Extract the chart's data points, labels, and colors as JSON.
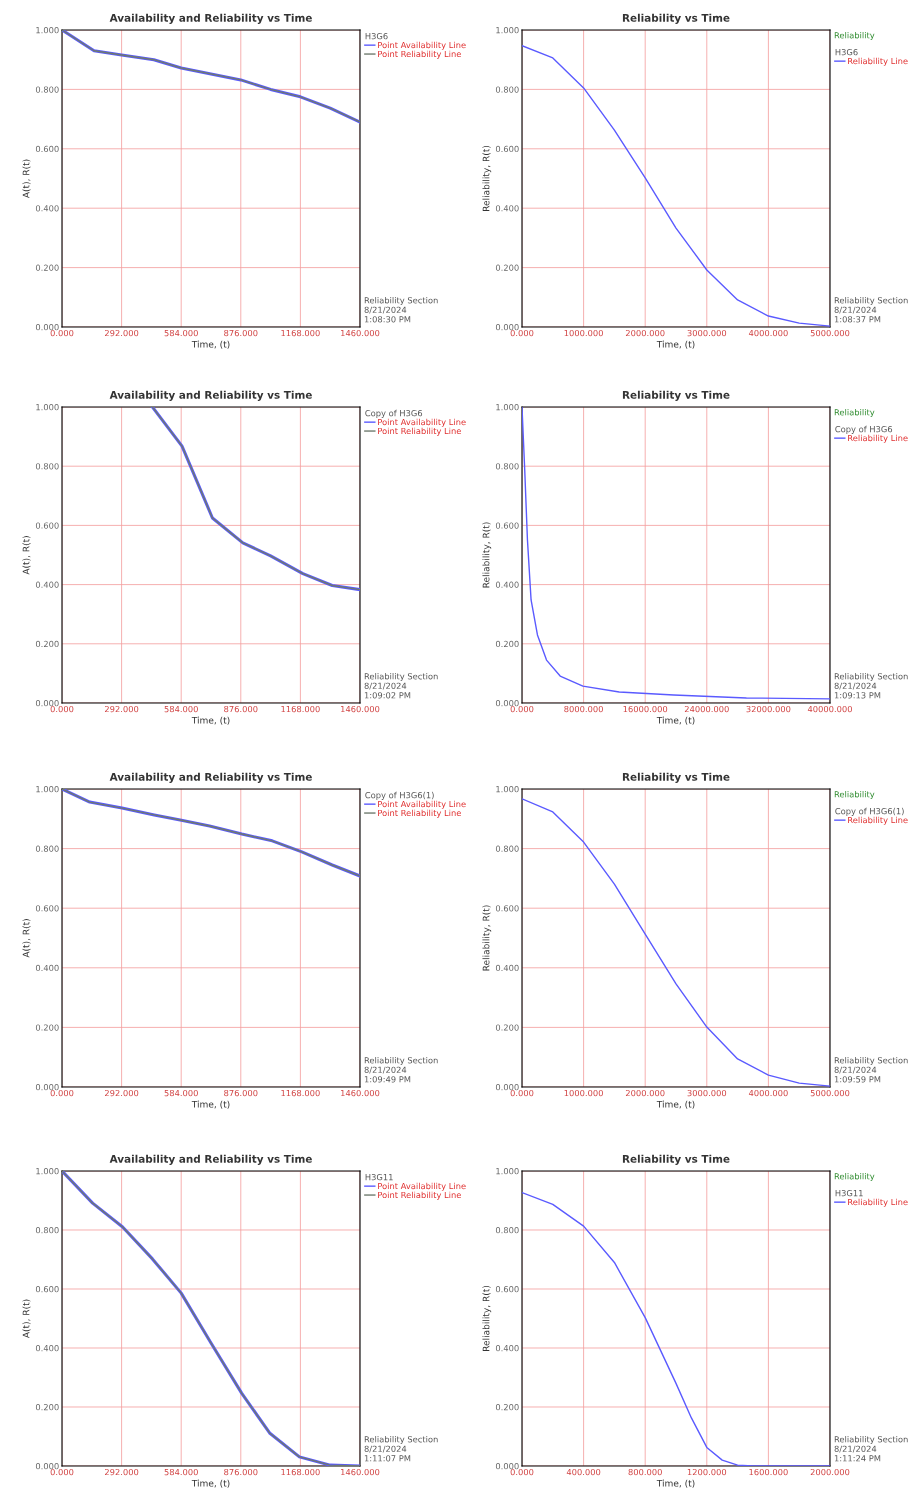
{
  "chart_data": [
    {
      "type": "line",
      "title": "Availability and Reliability vs Time",
      "xlabel": "Time, (t)",
      "ylabel": "A(t), R(t)",
      "legend_title": "H3G6",
      "legend": "right",
      "grid": true,
      "xlim": [
        0,
        1460
      ],
      "ylim": [
        0,
        1
      ],
      "xticks": [
        {
          "value": 0,
          "label": "0.000"
        },
        {
          "value": 292,
          "label": "292.000"
        },
        {
          "value": 584,
          "label": "584.000"
        },
        {
          "value": 876,
          "label": "876.000"
        },
        {
          "value": 1168,
          "label": "1168.000"
        },
        {
          "value": 1460,
          "label": "1460.000"
        }
      ],
      "yticks": [
        {
          "value": 0,
          "label": "0.000"
        },
        {
          "value": 0.2,
          "label": "0.200"
        },
        {
          "value": 0.4,
          "label": "0.400"
        },
        {
          "value": 0.6,
          "label": "0.600"
        },
        {
          "value": 0.8,
          "label": "0.800"
        },
        {
          "value": 1,
          "label": "1.000"
        }
      ],
      "x": [
        0,
        157,
        292,
        450,
        584,
        876,
        1022,
        1168,
        1314,
        1460
      ],
      "series": [
        {
          "name": "Point Availability Line",
          "color": "#5a5aff",
          "values": [
            1.0,
            0.93,
            0.916,
            0.9,
            0.872,
            0.832,
            0.8,
            0.775,
            0.737,
            0.69
          ]
        },
        {
          "name": "Point Reliability Line",
          "color": "#6e7a6e",
          "values": [
            1.0,
            0.93,
            0.916,
            0.9,
            0.872,
            0.832,
            0.8,
            0.775,
            0.737,
            0.69
          ]
        }
      ],
      "annotations": [
        "Reliability Section",
        "8/21/2024",
        "1:08:30 PM"
      ]
    },
    {
      "type": "line",
      "title": "Reliability vs Time",
      "subtitle": "Reliability",
      "xlabel": "Time, (t)",
      "ylabel": "Reliability, R(t)",
      "legend_title": "H3G6",
      "legend": "right",
      "grid": true,
      "xlim": [
        0,
        5000
      ],
      "ylim": [
        0,
        1
      ],
      "xticks": [
        {
          "value": 0,
          "label": "0.000"
        },
        {
          "value": 1000,
          "label": "1000.000"
        },
        {
          "value": 2000,
          "label": "2000.000"
        },
        {
          "value": 3000,
          "label": "3000.000"
        },
        {
          "value": 4000,
          "label": "4000.000"
        },
        {
          "value": 5000,
          "label": "5000.000"
        }
      ],
      "yticks": [
        {
          "value": 0,
          "label": "0.000"
        },
        {
          "value": 0.2,
          "label": "0.200"
        },
        {
          "value": 0.4,
          "label": "0.400"
        },
        {
          "value": 0.6,
          "label": "0.600"
        },
        {
          "value": 0.8,
          "label": "0.800"
        },
        {
          "value": 1,
          "label": "1.000"
        }
      ],
      "x": [
        0,
        500,
        1000,
        1500,
        2000,
        2500,
        3000,
        3500,
        4000,
        4500,
        5000
      ],
      "series": [
        {
          "name": "Reliability Line",
          "color": "#5a5aff",
          "values": [
            0.947,
            0.906,
            0.805,
            0.663,
            0.502,
            0.333,
            0.192,
            0.091,
            0.037,
            0.013,
            0.003
          ]
        }
      ],
      "annotations": [
        "Reliability Section",
        "8/21/2024",
        "1:08:37 PM"
      ]
    },
    {
      "type": "line",
      "title": "Availability and Reliability vs Time",
      "xlabel": "Time, (t)",
      "ylabel": "A(t), R(t)",
      "legend_title": "Copy of H3G6",
      "legend": "right",
      "grid": true,
      "xlim": [
        0,
        1460
      ],
      "ylim": [
        0,
        1
      ],
      "xticks": [
        {
          "value": 0,
          "label": "0.000"
        },
        {
          "value": 292,
          "label": "292.000"
        },
        {
          "value": 584,
          "label": "584.000"
        },
        {
          "value": 876,
          "label": "876.000"
        },
        {
          "value": 1168,
          "label": "1168.000"
        },
        {
          "value": 1460,
          "label": "1460.000"
        }
      ],
      "yticks": [
        {
          "value": 0,
          "label": "0.000"
        },
        {
          "value": 0.2,
          "label": "0.200"
        },
        {
          "value": 0.4,
          "label": "0.400"
        },
        {
          "value": 0.6,
          "label": "0.600"
        },
        {
          "value": 0.8,
          "label": "0.800"
        },
        {
          "value": 1,
          "label": "1.000"
        }
      ],
      "x": [
        443,
        588,
        737,
        886,
        1022,
        1180,
        1324,
        1460
      ],
      "series": [
        {
          "name": "Point Availability Line",
          "color": "#5a5aff",
          "values": [
            1.0,
            0.868,
            0.625,
            0.541,
            0.497,
            0.437,
            0.397,
            0.383
          ]
        },
        {
          "name": "Point Reliability Line",
          "color": "#6e7a6e",
          "values": [
            1.0,
            0.868,
            0.625,
            0.541,
            0.497,
            0.437,
            0.397,
            0.383
          ]
        }
      ],
      "annotations": [
        "Reliability Section",
        "8/21/2024",
        "1:09:02 PM"
      ]
    },
    {
      "type": "line",
      "title": "Reliability vs Time",
      "subtitle": "Reliability",
      "xlabel": "Time, (t)",
      "ylabel": "Reliability, R(t)",
      "legend_title": "Copy of H3G6",
      "legend": "right",
      "grid": true,
      "xlim": [
        0,
        40000
      ],
      "ylim": [
        0,
        1
      ],
      "xticks": [
        {
          "value": 0,
          "label": "0.000"
        },
        {
          "value": 8000,
          "label": "8000.000"
        },
        {
          "value": 16000,
          "label": "16000.000"
        },
        {
          "value": 24000,
          "label": "24000.000"
        },
        {
          "value": 32000,
          "label": "32000.000"
        },
        {
          "value": 40000,
          "label": "40000.000"
        }
      ],
      "yticks": [
        {
          "value": 0,
          "label": "0.000"
        },
        {
          "value": 0.2,
          "label": "0.200"
        },
        {
          "value": 0.4,
          "label": "0.400"
        },
        {
          "value": 0.6,
          "label": "0.600"
        },
        {
          "value": 0.8,
          "label": "0.800"
        },
        {
          "value": 1,
          "label": "1.000"
        }
      ],
      "x": [
        0,
        354,
        708,
        1180,
        2006,
        3186,
        4956,
        7906,
        12625,
        19705,
        29145,
        40000
      ],
      "series": [
        {
          "name": "Reliability Line",
          "color": "#5a5aff",
          "values": [
            1.0,
            0.787,
            0.551,
            0.348,
            0.23,
            0.145,
            0.091,
            0.057,
            0.037,
            0.027,
            0.017,
            0.014
          ]
        }
      ],
      "annotations": [
        "Reliability Section",
        "8/21/2024",
        "1:09:13 PM"
      ]
    },
    {
      "type": "line",
      "title": "Availability and Reliability vs Time",
      "xlabel": "Time, (t)",
      "ylabel": "A(t), R(t)",
      "legend_title": "Copy of H3G6(1)",
      "legend": "right",
      "grid": true,
      "xlim": [
        0,
        1460
      ],
      "ylim": [
        0,
        1
      ],
      "xticks": [
        {
          "value": 0,
          "label": "0.000"
        },
        {
          "value": 292,
          "label": "292.000"
        },
        {
          "value": 584,
          "label": "584.000"
        },
        {
          "value": 876,
          "label": "876.000"
        },
        {
          "value": 1168,
          "label": "1168.000"
        },
        {
          "value": 1460,
          "label": "1460.000"
        }
      ],
      "yticks": [
        {
          "value": 0,
          "label": "0.000"
        },
        {
          "value": 0.2,
          "label": "0.200"
        },
        {
          "value": 0.4,
          "label": "0.400"
        },
        {
          "value": 0.6,
          "label": "0.600"
        },
        {
          "value": 0.8,
          "label": "0.800"
        },
        {
          "value": 1,
          "label": "1.000"
        }
      ],
      "x": [
        0,
        136,
        294,
        452,
        579,
        723,
        881,
        1030,
        1175,
        1324,
        1460
      ],
      "series": [
        {
          "name": "Point Availability Line",
          "color": "#5a5aff",
          "values": [
            1.0,
            0.956,
            0.936,
            0.913,
            0.896,
            0.876,
            0.849,
            0.826,
            0.789,
            0.745,
            0.708
          ]
        },
        {
          "name": "Point Reliability Line",
          "color": "#6e7a6e",
          "values": [
            1.0,
            0.956,
            0.936,
            0.913,
            0.896,
            0.876,
            0.849,
            0.826,
            0.789,
            0.745,
            0.708
          ]
        }
      ],
      "annotations": [
        "Reliability Section",
        "8/21/2024",
        "1:09:49 PM"
      ]
    },
    {
      "type": "line",
      "title": "Reliability vs Time",
      "subtitle": "Reliability",
      "xlabel": "Time, (t)",
      "ylabel": "Reliability, R(t)",
      "legend_title": "Copy of H3G6(1)",
      "legend": "right",
      "grid": true,
      "xlim": [
        0,
        5000
      ],
      "ylim": [
        0,
        1
      ],
      "xticks": [
        {
          "value": 0,
          "label": "0.000"
        },
        {
          "value": 1000,
          "label": "1000.000"
        },
        {
          "value": 2000,
          "label": "2000.000"
        },
        {
          "value": 3000,
          "label": "3000.000"
        },
        {
          "value": 4000,
          "label": "4000.000"
        },
        {
          "value": 5000,
          "label": "5000.000"
        }
      ],
      "yticks": [
        {
          "value": 0,
          "label": "0.000"
        },
        {
          "value": 0.2,
          "label": "0.200"
        },
        {
          "value": 0.4,
          "label": "0.400"
        },
        {
          "value": 0.6,
          "label": "0.600"
        },
        {
          "value": 0.8,
          "label": "0.800"
        },
        {
          "value": 1,
          "label": "1.000"
        }
      ],
      "x": [
        0,
        500,
        1000,
        1500,
        2000,
        2500,
        3000,
        3500,
        4000,
        4500,
        5000
      ],
      "series": [
        {
          "name": "Reliability Line",
          "color": "#5a5aff",
          "values": [
            0.967,
            0.923,
            0.822,
            0.681,
            0.513,
            0.346,
            0.201,
            0.094,
            0.04,
            0.013,
            0.003
          ]
        }
      ],
      "annotations": [
        "Reliability Section",
        "8/21/2024",
        "1:09:59 PM"
      ]
    },
    {
      "type": "line",
      "title": "Availability and Reliability vs Time",
      "xlabel": "Time, (t)",
      "ylabel": "A(t), R(t)",
      "legend_title": "H3G11",
      "legend": "right",
      "grid": true,
      "xlim": [
        0,
        1460
      ],
      "ylim": [
        0,
        1
      ],
      "xticks": [
        {
          "value": 0,
          "label": "0.000"
        },
        {
          "value": 292,
          "label": "292.000"
        },
        {
          "value": 584,
          "label": "584.000"
        },
        {
          "value": 876,
          "label": "876.000"
        },
        {
          "value": 1168,
          "label": "1168.000"
        },
        {
          "value": 1460,
          "label": "1460.000"
        }
      ],
      "yticks": [
        {
          "value": 0,
          "label": "0.000"
        },
        {
          "value": 0.2,
          "label": "0.200"
        },
        {
          "value": 0.4,
          "label": "0.400"
        },
        {
          "value": 0.6,
          "label": "0.600"
        },
        {
          "value": 0.8,
          "label": "0.800"
        },
        {
          "value": 1,
          "label": "1.000"
        }
      ],
      "x": [
        0,
        150,
        297,
        443,
        584,
        730,
        880,
        1017,
        1163,
        1314,
        1460
      ],
      "series": [
        {
          "name": "Point Availability Line",
          "color": "#5a5aff",
          "values": [
            1.0,
            0.891,
            0.81,
            0.702,
            0.586,
            0.417,
            0.247,
            0.112,
            0.031,
            0.003,
            0.0
          ]
        },
        {
          "name": "Point Reliability Line",
          "color": "#6e7a6e",
          "values": [
            1.0,
            0.891,
            0.81,
            0.702,
            0.586,
            0.417,
            0.247,
            0.112,
            0.031,
            0.003,
            0.0
          ]
        }
      ],
      "annotations": [
        "Reliability Section",
        "8/21/2024",
        "1:11:07 PM"
      ]
    },
    {
      "type": "line",
      "title": "Reliability vs Time",
      "subtitle": "Reliability",
      "xlabel": "Time, (t)",
      "ylabel": "Reliability, R(t)",
      "legend_title": "H3G11",
      "legend": "right",
      "grid": true,
      "xlim": [
        0,
        2000
      ],
      "ylim": [
        0,
        1
      ],
      "xticks": [
        {
          "value": 0,
          "label": "0.000"
        },
        {
          "value": 400,
          "label": "400.000"
        },
        {
          "value": 800,
          "label": "800.000"
        },
        {
          "value": 1200,
          "label": "1200.000"
        },
        {
          "value": 1600,
          "label": "1600.000"
        },
        {
          "value": 2000,
          "label": "2000.000"
        }
      ],
      "yticks": [
        {
          "value": 0,
          "label": "0.000"
        },
        {
          "value": 0.2,
          "label": "0.200"
        },
        {
          "value": 0.4,
          "label": "0.400"
        },
        {
          "value": 0.6,
          "label": "0.600"
        },
        {
          "value": 0.8,
          "label": "0.800"
        },
        {
          "value": 1,
          "label": "1.000"
        }
      ],
      "x": [
        0,
        200,
        400,
        600,
        800,
        1000,
        1100,
        1200,
        1300,
        1400,
        1500,
        2000
      ],
      "series": [
        {
          "name": "Reliability Line",
          "color": "#5a5aff",
          "values": [
            0.927,
            0.887,
            0.813,
            0.69,
            0.503,
            0.28,
            0.163,
            0.063,
            0.02,
            0.003,
            0.0,
            0.0
          ]
        }
      ],
      "annotations": [
        "Reliability Section",
        "8/21/2024",
        "1:11:24 PM"
      ]
    }
  ]
}
